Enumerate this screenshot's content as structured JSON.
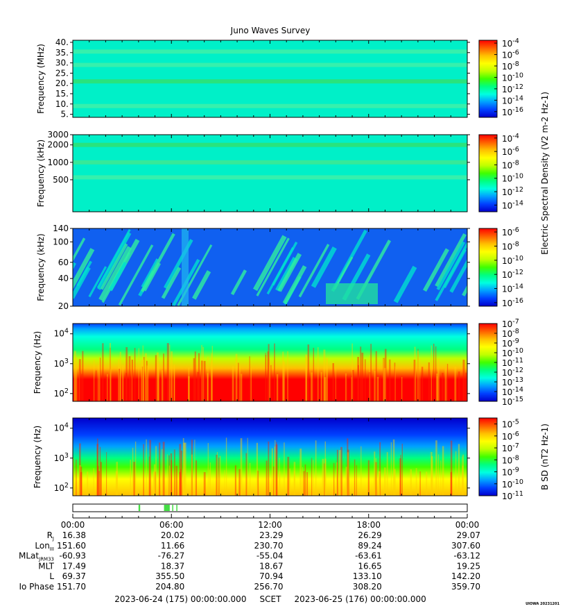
{
  "title": "Juno Waves Survey",
  "footer": {
    "start": "2023-06-24 (175) 00:00:00.000",
    "frame": "SCET",
    "end": "2023-06-25 (176) 00:00:00.000"
  },
  "watermark": "UIOWA 20231201",
  "colors": {
    "colormap": [
      "#0000cc",
      "#0040ff",
      "#00a0ff",
      "#00ffe0",
      "#00ff80",
      "#40ff00",
      "#c0ff00",
      "#ffff00",
      "#ffc000",
      "#ff6000",
      "#ff0000"
    ]
  },
  "chart_data": [
    {
      "type": "heatmap",
      "title": "Juno Waves Survey",
      "ylabel": "Frequency (MHz)",
      "yscale": "linear",
      "ylim": [
        3.5,
        41
      ],
      "yticks": [
        "40.",
        "35.",
        "30.",
        "25.",
        "20.",
        "15.",
        "10.",
        "5."
      ],
      "ytick_values": [
        40,
        35,
        30,
        25,
        20,
        15,
        10,
        5
      ],
      "colorbar": {
        "ticks": [
          "10^-4",
          "10^-6",
          "10^-8",
          "10^-10",
          "10^-12",
          "10^-14",
          "10^-16"
        ],
        "exponents": [
          -4,
          -6,
          -8,
          -10,
          -12,
          -14,
          -16
        ],
        "range": [
          -17,
          -3.5
        ]
      },
      "background": "#00f0c8",
      "bands": [
        {
          "y": 21.0,
          "color": "#30e070"
        },
        {
          "y": 35.5,
          "color": "#40f0a8"
        },
        {
          "y": 29.0,
          "color": "#40f0a8"
        },
        {
          "y": 9.0,
          "color": "#40f0a8"
        }
      ]
    },
    {
      "type": "heatmap",
      "ylabel": "Frequency (kHz)",
      "yscale": "log",
      "ylim": [
        140,
        3000
      ],
      "yticks": [
        "3000",
        "2000",
        "1000",
        "500"
      ],
      "ytick_values": [
        3000,
        2000,
        1000,
        500
      ],
      "colorbar": {
        "ticks": [
          "10^-4",
          "10^-6",
          "10^-8",
          "10^-10",
          "10^-12",
          "10^-14"
        ],
        "exponents": [
          -4,
          -6,
          -8,
          -10,
          -12,
          -14
        ],
        "range": [
          -15,
          -3.5
        ]
      },
      "background": "#00f0c8",
      "bands": [
        {
          "y": 2000,
          "color": "#30e070"
        },
        {
          "y": 1000,
          "color": "#40e890"
        },
        {
          "y": 550,
          "color": "#40f0a8"
        }
      ]
    },
    {
      "type": "heatmap",
      "ylabel": "Frequency (kHz)",
      "yscale": "log",
      "ylim": [
        20,
        140
      ],
      "yticks": [
        "140",
        "100",
        "60",
        "40",
        "20"
      ],
      "ytick_values": [
        140,
        100,
        60,
        40,
        20
      ],
      "colorbar": {
        "ticks": [
          "10^-6",
          "10^-8",
          "10^-10",
          "10^-12",
          "10^-14",
          "10^-16"
        ],
        "exponents": [
          -6,
          -8,
          -10,
          -12,
          -14,
          -16
        ],
        "range": [
          -16.5,
          -5.5
        ]
      },
      "background": "#1060f0",
      "features": "diagonal striations of 10^-12 to 10^-13 (cyan/green) on 10^-15 (blue) background"
    },
    {
      "type": "heatmap",
      "ylabel": "Frequency (Hz)",
      "yscale": "log",
      "ylim": [
        55,
        22000
      ],
      "yticks": [
        "10^4",
        "10^3",
        "10^2"
      ],
      "ytick_values": [
        10000,
        1000,
        100
      ],
      "colorbar": {
        "ticks": [
          "10^-7",
          "10^-8",
          "10^-9",
          "10^-10",
          "10^-11",
          "10^-12",
          "10^-13",
          "10^-14",
          "10^-15"
        ],
        "exponents": [
          -7,
          -8,
          -9,
          -10,
          -11,
          -12,
          -13,
          -14,
          -15
        ],
        "range": [
          -15,
          -7
        ]
      },
      "profile": [
        [
          55,
          -7
        ],
        [
          300,
          -7.2
        ],
        [
          700,
          -8.5
        ],
        [
          1500,
          -10.5
        ],
        [
          3000,
          -11.5
        ],
        [
          8000,
          -12.5
        ],
        [
          15000,
          -13.5
        ],
        [
          22000,
          -14
        ]
      ]
    },
    {
      "type": "heatmap",
      "ylabel": "Frequency (Hz)",
      "yscale": "log",
      "ylim": [
        55,
        22000
      ],
      "yticks": [
        "10^4",
        "10^3",
        "10^2"
      ],
      "ytick_values": [
        10000,
        1000,
        100
      ],
      "colorbar": {
        "label": "B SD (nT^2 Hz^-1)",
        "ticks": [
          "10^-5",
          "10^-6",
          "10^-7",
          "10^-8",
          "10^-9",
          "10^-10",
          "10^-11"
        ],
        "exponents": [
          -5,
          -6,
          -7,
          -8,
          -9,
          -10,
          -11
        ],
        "range": [
          -11,
          -4.5
        ]
      },
      "profile": [
        [
          55,
          -5.5
        ],
        [
          200,
          -6.5
        ],
        [
          500,
          -7.5
        ],
        [
          1000,
          -8.5
        ],
        [
          2500,
          -9.5
        ],
        [
          6000,
          -10.3
        ],
        [
          22000,
          -10.8
        ]
      ]
    }
  ],
  "shared_colorbar_label": "Electric Spectral Density (V^2 m^-2 Hz^-1)",
  "time_axis": {
    "ticks": [
      "00:00",
      "06:00",
      "12:00",
      "18:00",
      "00:00"
    ],
    "tick_hours": [
      0,
      6,
      12,
      18,
      24
    ]
  },
  "mode_bar": {
    "green_segments_hours": [
      [
        4.0,
        4.1
      ],
      [
        5.55,
        5.9
      ],
      [
        6.05,
        6.1
      ],
      [
        6.3,
        6.35
      ]
    ],
    "color": "#44dd44"
  },
  "ephemeris": [
    {
      "label": "R",
      "sub": "J",
      "values": [
        "16.38",
        "20.02",
        "23.29",
        "26.29",
        "29.07"
      ]
    },
    {
      "label": "Lon",
      "sub": "III",
      "values": [
        "151.60",
        "11.66",
        "230.70",
        "89.24",
        "307.60"
      ]
    },
    {
      "label": "MLat",
      "sub": "JRM33",
      "values": [
        "-60.93",
        "-76.27",
        "-55.04",
        "-63.61",
        "-63.12"
      ]
    },
    {
      "label": "MLT",
      "sub": "",
      "values": [
        "17.49",
        "18.37",
        "18.67",
        "16.65",
        "19.25"
      ]
    },
    {
      "label": "L",
      "sub": "",
      "values": [
        "69.37",
        "355.50",
        "70.94",
        "133.10",
        "142.20"
      ]
    },
    {
      "label": "Io Phase",
      "sub": "",
      "values": [
        "151.70",
        "204.80",
        "256.70",
        "308.20",
        "359.70"
      ]
    }
  ]
}
